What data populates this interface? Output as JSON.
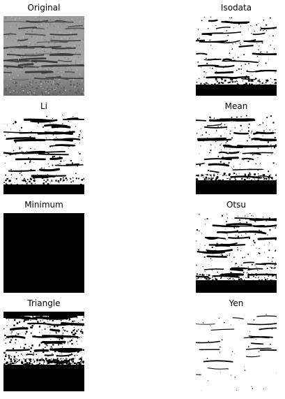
{
  "panels": [
    {
      "key": "original",
      "title": "Original"
    },
    {
      "key": "isodata",
      "title": "Isodata"
    },
    {
      "key": "li",
      "title": "Li"
    },
    {
      "key": "mean",
      "title": "Mean"
    },
    {
      "key": "minimum",
      "title": "Minimum"
    },
    {
      "key": "otsu",
      "title": "Otsu"
    },
    {
      "key": "triangle",
      "title": "Triangle"
    },
    {
      "key": "yen",
      "title": "Yen"
    }
  ]
}
